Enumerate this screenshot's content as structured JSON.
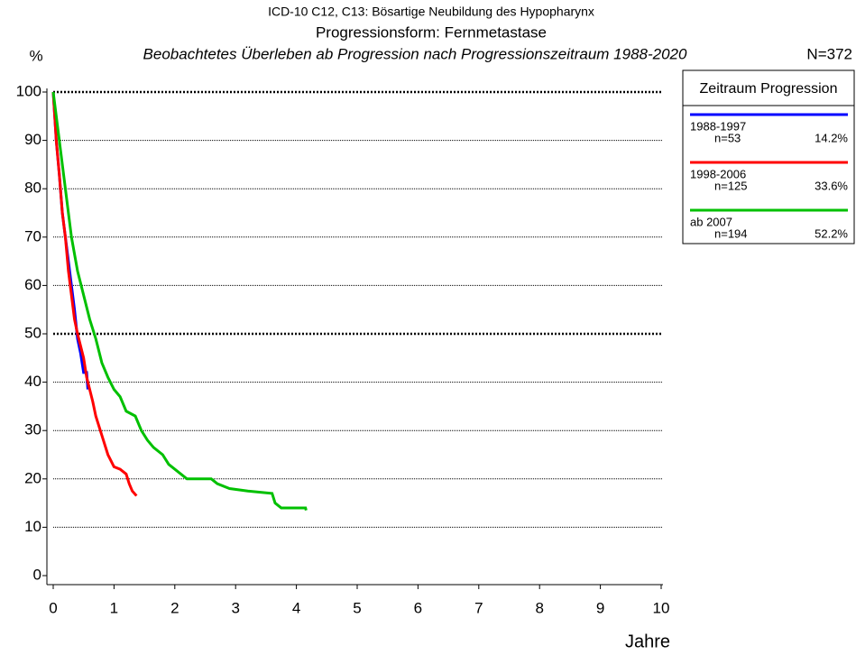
{
  "chart_data": {
    "type": "line",
    "title": "ICD-10 C12, C13: Bösartige Neubildung des Hypopharynx",
    "subtitle": "Progressionsform: Fernmetastase",
    "subtitle2": "Beobachtetes Überleben ab Progression nach Progressionszeitraum 1988-2020",
    "y_label": "%",
    "x_label": "Jahre",
    "total": "N=372",
    "legend_title": "Zeitraum Progression",
    "xlim": [
      0,
      10
    ],
    "ylim": [
      0,
      100
    ],
    "xticks": [
      0,
      1,
      2,
      3,
      4,
      5,
      6,
      7,
      8,
      9,
      10
    ],
    "yticks": [
      0,
      10,
      20,
      30,
      40,
      50,
      60,
      70,
      80,
      90,
      100
    ],
    "grid": true,
    "bold_gridlines": [
      50,
      100
    ],
    "series": [
      {
        "name": "1988-1997",
        "n_label": "n=53",
        "share_label": "14.2%",
        "color": "#0000ff",
        "x": [
          0,
          0.05,
          0.1,
          0.15,
          0.2,
          0.25,
          0.3,
          0.35,
          0.4,
          0.45,
          0.5,
          0.55,
          0.57
        ],
        "values": [
          100,
          90,
          83,
          75,
          70,
          65,
          60,
          55,
          49,
          46,
          42,
          42,
          38.5
        ]
      },
      {
        "name": "1998-2006",
        "n_label": "n=125",
        "share_label": "33.6%",
        "color": "#ff0000",
        "x": [
          0,
          0.05,
          0.1,
          0.15,
          0.2,
          0.25,
          0.3,
          0.35,
          0.4,
          0.5,
          0.55,
          0.65,
          0.7,
          0.8,
          0.9,
          1.0,
          1.1,
          1.2,
          1.25,
          1.3,
          1.37
        ],
        "values": [
          100,
          90,
          83,
          75,
          70,
          63,
          58,
          53,
          50,
          45,
          41,
          36,
          33,
          29,
          25,
          22.5,
          22,
          21,
          19,
          17.5,
          16.5
        ]
      },
      {
        "name": "ab 2007",
        "n_label": "n=194",
        "share_label": "52.2%",
        "color": "#00c000",
        "x": [
          0,
          0.1,
          0.2,
          0.3,
          0.4,
          0.5,
          0.6,
          0.7,
          0.8,
          0.9,
          1.0,
          1.1,
          1.2,
          1.35,
          1.45,
          1.55,
          1.65,
          1.8,
          1.9,
          2.0,
          2.1,
          2.2,
          2.6,
          2.7,
          2.9,
          3.2,
          3.6,
          3.65,
          3.75,
          4.15,
          4.16
        ],
        "values": [
          100,
          90,
          80,
          70,
          63,
          58,
          53,
          49,
          44,
          41,
          38.5,
          37,
          34,
          33,
          30,
          28,
          26.5,
          25,
          23,
          22,
          21,
          20,
          20,
          19,
          18,
          17.5,
          17,
          15,
          14,
          14,
          13.5
        ]
      }
    ]
  }
}
